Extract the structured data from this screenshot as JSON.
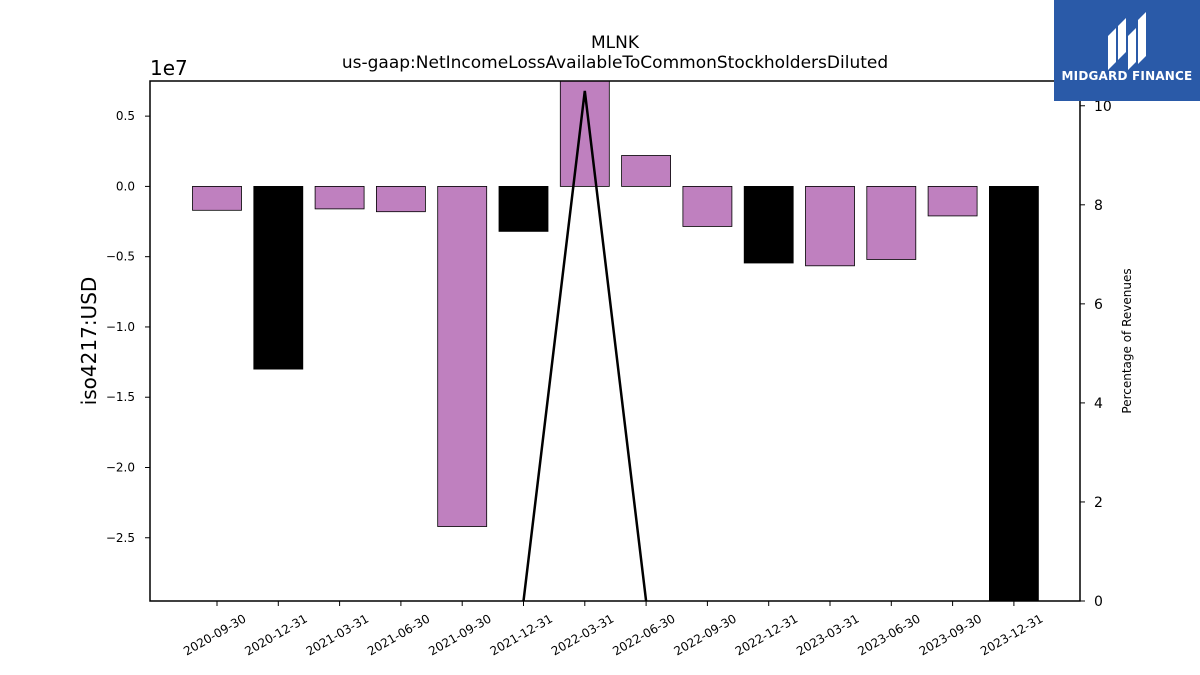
{
  "chart_data": {
    "type": "bar",
    "title": "MLNK",
    "subtitle": "us-gaap:NetIncomeLossAvailableToCommonStockholdersDiluted",
    "ylabel": "iso4217:USD",
    "y_offset_label": "1e7",
    "y2label": "Percentage of Revenues",
    "categories": [
      "2020-09-30",
      "2020-12-31",
      "2021-03-31",
      "2021-06-30",
      "2021-09-30",
      "2021-12-31",
      "2022-03-31",
      "2022-06-30",
      "2022-09-30",
      "2022-12-31",
      "2023-03-31",
      "2023-06-30",
      "2023-09-30",
      "2023-12-31"
    ],
    "values": [
      -1700000,
      -13000000,
      -1600000,
      -1800000,
      -24200000,
      -3200000,
      7500000,
      2200000,
      -2850000,
      -5450000,
      -5650000,
      -5200000,
      -2100000,
      -30000000
    ],
    "bar_colors": [
      "#bf80bf",
      "#000000",
      "#bf80bf",
      "#bf80bf",
      "#bf80bf",
      "#000000",
      "#bf80bf",
      "#bf80bf",
      "#bf80bf",
      "#000000",
      "#bf80bf",
      "#bf80bf",
      "#bf80bf",
      "#000000"
    ],
    "ylim": [
      -29500000,
      7500000
    ],
    "yticks": [
      0.5,
      0.0,
      -0.5,
      -1.0,
      -1.5,
      -2.0,
      -2.5
    ],
    "ytick_labels": [
      "0.5",
      "0.0",
      "−0.5",
      "−1.0",
      "−1.5",
      "−2.0",
      "−2.5"
    ],
    "line_series": {
      "axis": "right",
      "x": [
        "2021-12-31",
        "2022-03-31",
        "2022-06-30"
      ],
      "values": [
        0,
        10.3,
        0
      ]
    },
    "y2lim": [
      0,
      10.5
    ],
    "y2ticks": [
      0,
      2,
      4,
      6,
      8,
      10
    ],
    "grid": false
  },
  "logo": {
    "text": "MIDGARD FINANCE",
    "color": "#2a5aa8"
  }
}
